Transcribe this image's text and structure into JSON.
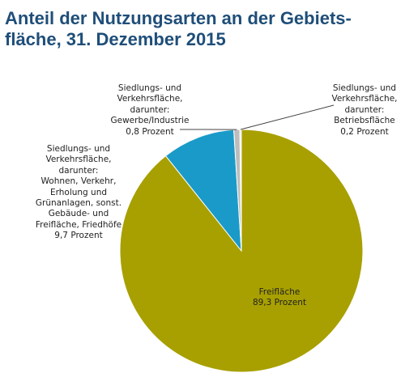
{
  "title_lines": [
    "Anteil der Nutzungsarten an der Gebiets-",
    "fläche, 31. Dezember 2015"
  ],
  "chart_data": {
    "type": "pie",
    "title": "Anteil der Nutzungsarten an der Gebietsfläche, 31. Dezember 2015",
    "slices": [
      {
        "value": 89.3,
        "color": "#a8a000",
        "label_lines": [
          "Freifläche",
          "89,3 Prozent"
        ]
      },
      {
        "value": 9.7,
        "color": "#1a9ac9",
        "label_lines": [
          "Siedlungs- und",
          "Verkehrsfläche,",
          "darunter:",
          "Wohnen, Verkehr,",
          "Erholung und",
          "Grünanlagen, sonst.",
          "Gebäude- und",
          "Freifläche, Friedhöfe",
          "9,7 Prozent"
        ]
      },
      {
        "value": 0.8,
        "color": "#bdbdbd",
        "label_lines": [
          "Siedlungs- und",
          "Verkehrsfläche,",
          "darunter:",
          "Gewerbe/Industrie",
          "0,8 Prozent"
        ]
      },
      {
        "value": 0.2,
        "color": "#e6e6e6",
        "label_lines": [
          "Siedlungs- und",
          "Verkehrsfläche,",
          "darunter:",
          "Betriebsfläche",
          "0,2 Prozent"
        ]
      }
    ]
  }
}
